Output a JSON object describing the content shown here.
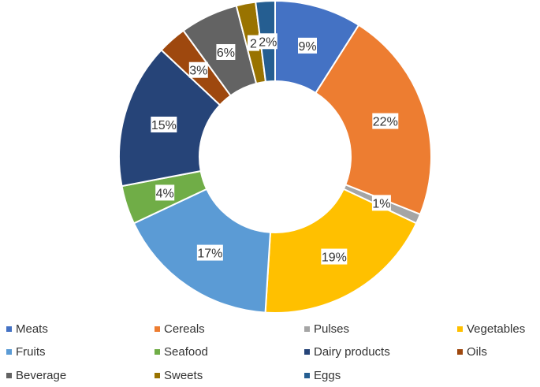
{
  "chart_data": {
    "type": "donut",
    "title": "",
    "categories": [
      "Meats",
      "Cereals",
      "Pulses",
      "Vegetables",
      "Fruits",
      "Seafood",
      "Dairy products",
      "Oils",
      "Beverage",
      "Sweets",
      "Eggs"
    ],
    "values": [
      9,
      22,
      1,
      19,
      17,
      4,
      15,
      3,
      6,
      2,
      2
    ],
    "labels": [
      "9%",
      "22%",
      "1%",
      "19%",
      "17%",
      "4%",
      "15%",
      "3%",
      "6%",
      "2",
      "2%"
    ],
    "colors": [
      "#4472C4",
      "#ED7D31",
      "#A5A5A5",
      "#FFC000",
      "#5B9BD5",
      "#70AD47",
      "#264478",
      "#9E480E",
      "#636363",
      "#997300",
      "#255E91"
    ],
    "legend_position": "bottom"
  }
}
